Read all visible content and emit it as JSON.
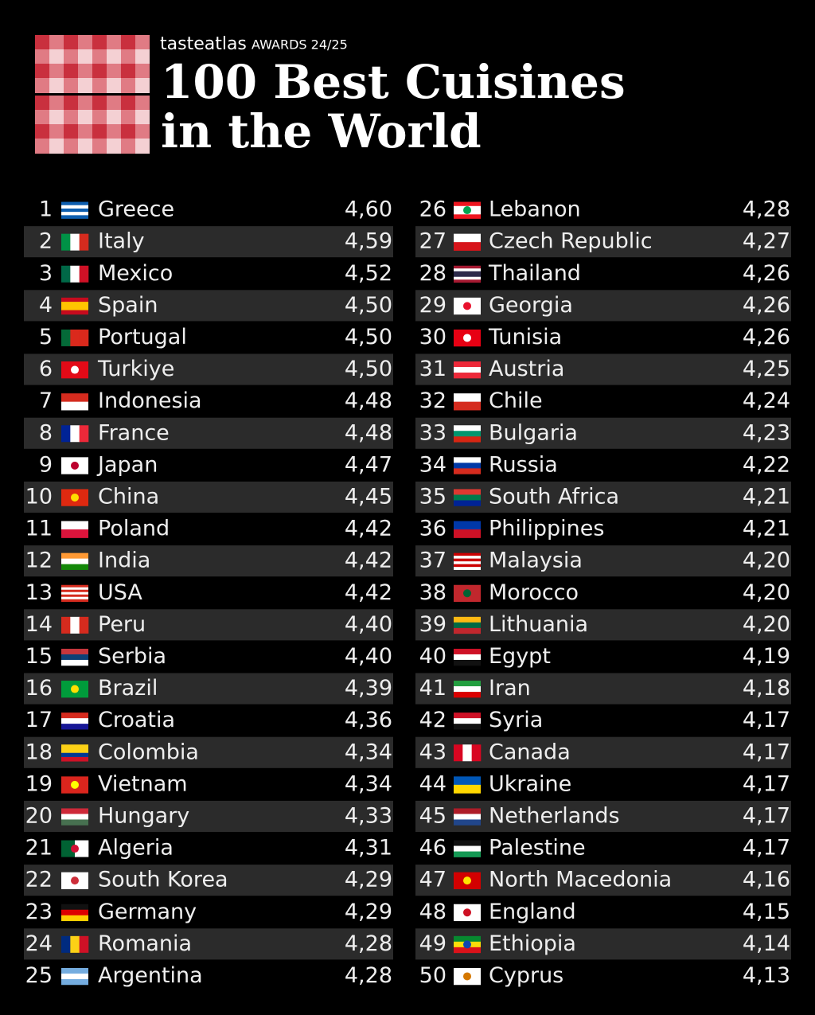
{
  "header": {
    "brand": "tasteatlas",
    "edition": "AWARDS 24/25",
    "title_lines": [
      "100 Best Cuisines",
      "in the World"
    ]
  },
  "table": {
    "rows": [
      [
        1,
        "Greece",
        "4,60"
      ],
      [
        2,
        "Italy",
        "4,59"
      ],
      [
        3,
        "Mexico",
        "4,52"
      ],
      [
        4,
        "Spain",
        "4,50"
      ],
      [
        5,
        "Portugal",
        "4,50"
      ],
      [
        6,
        "Turkiye",
        "4,50"
      ],
      [
        7,
        "Indonesia",
        "4,48"
      ],
      [
        8,
        "France",
        "4,48"
      ],
      [
        9,
        "Japan",
        "4,47"
      ],
      [
        10,
        "China",
        "4,45"
      ],
      [
        11,
        "Poland",
        "4,42"
      ],
      [
        12,
        "India",
        "4,42"
      ],
      [
        13,
        "USA",
        "4,42"
      ],
      [
        14,
        "Peru",
        "4,40"
      ],
      [
        15,
        "Serbia",
        "4,40"
      ],
      [
        16,
        "Brazil",
        "4,39"
      ],
      [
        17,
        "Croatia",
        "4,36"
      ],
      [
        18,
        "Colombia",
        "4,34"
      ],
      [
        19,
        "Vietnam",
        "4,34"
      ],
      [
        20,
        "Hungary",
        "4,33"
      ],
      [
        21,
        "Algeria",
        "4,31"
      ],
      [
        22,
        "South Korea",
        "4,29"
      ],
      [
        23,
        "Germany",
        "4,29"
      ],
      [
        24,
        "Romania",
        "4,28"
      ],
      [
        25,
        "Argentina",
        "4,28"
      ],
      [
        26,
        "Lebanon",
        "4,28"
      ],
      [
        27,
        "Czech Republic",
        "4,27"
      ],
      [
        28,
        "Thailand",
        "4,26"
      ],
      [
        29,
        "Georgia",
        "4,26"
      ],
      [
        30,
        "Tunisia",
        "4,26"
      ],
      [
        31,
        "Austria",
        "4,25"
      ],
      [
        32,
        "Chile",
        "4,24"
      ],
      [
        33,
        "Bulgaria",
        "4,23"
      ],
      [
        34,
        "Russia",
        "4,22"
      ],
      [
        35,
        "South Africa",
        "4,21"
      ],
      [
        36,
        "Philippines",
        "4,21"
      ],
      [
        37,
        "Malaysia",
        "4,20"
      ],
      [
        38,
        "Morocco",
        "4,20"
      ],
      [
        39,
        "Lithuania",
        "4,20"
      ],
      [
        40,
        "Egypt",
        "4,19"
      ],
      [
        41,
        "Iran",
        "4,18"
      ],
      [
        42,
        "Syria",
        "4,17"
      ],
      [
        43,
        "Canada",
        "4,17"
      ],
      [
        44,
        "Ukraine",
        "4,17"
      ],
      [
        45,
        "Netherlands",
        "4,17"
      ],
      [
        46,
        "Palestine",
        "4,17"
      ],
      [
        47,
        "North Macedonia",
        "4,16"
      ],
      [
        48,
        "England",
        "4,15"
      ],
      [
        49,
        "Ethiopia",
        "4,14"
      ],
      [
        50,
        "Cyprus",
        "4,13"
      ]
    ]
  }
}
